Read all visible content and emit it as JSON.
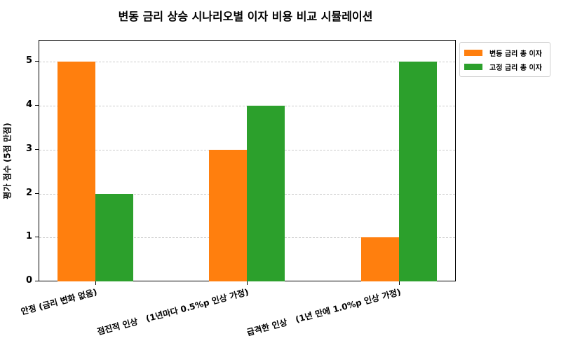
{
  "chart_data": {
    "type": "bar",
    "title": "변동 금리 상승 시나리오별 이자 비용 비교 시뮬레이션",
    "xlabel": "",
    "ylabel": "평가 점수 (5점 만점)",
    "ylim": [
      0,
      5.5
    ],
    "yticks": [
      0,
      1,
      2,
      3,
      4,
      5
    ],
    "grid": true,
    "legend_position": "upper right outside",
    "categories": [
      "안정 (금리 변화 없음)",
      "점진적 인상   (1년마다 0.5%p 인상 가정)",
      "급격한 인상   (1년 만에 1.0%p 인상 가정)"
    ],
    "series": [
      {
        "name": "변동 금리 총 이자",
        "color": "#ff7f0e",
        "values": [
          5,
          3,
          1
        ]
      },
      {
        "name": "고정 금리 총 이자",
        "color": "#2ca02c",
        "values": [
          2,
          4,
          5
        ]
      }
    ]
  }
}
